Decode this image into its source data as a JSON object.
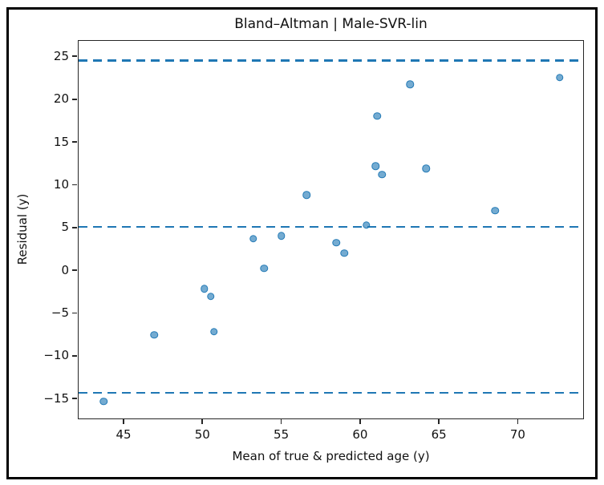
{
  "figure": {
    "background_color": "#ffffff",
    "frame_color": "#000000"
  },
  "chart_data": {
    "type": "scatter",
    "title": "Bland–Altman | Male-SVR-lin",
    "xlabel": "Mean of true & predicted age (y)",
    "ylabel": "Residual (y)",
    "xlim": [
      42.1,
      74.2
    ],
    "ylim": [
      -17.4,
      26.9
    ],
    "x_ticks": [
      45,
      50,
      55,
      60,
      65,
      70
    ],
    "x_tick_labels": [
      "45",
      "50",
      "55",
      "60",
      "65",
      "70"
    ],
    "y_ticks": [
      25,
      20,
      15,
      10,
      5,
      0,
      -5,
      -10,
      -15
    ],
    "y_tick_labels": [
      "25",
      "20",
      "15",
      "10",
      "5",
      "0",
      "−5",
      "−10",
      "−15"
    ],
    "grid": false,
    "legend_position": "none",
    "marker_color": "#1f77b4",
    "marker_fill_opacity": 0.65,
    "series": [
      {
        "name": "residuals-vs-mean",
        "marker": "circle",
        "points": [
          [
            43.7,
            -15.4
          ],
          [
            46.9,
            -7.6
          ],
          [
            50.1,
            -2.2
          ],
          [
            50.5,
            -3.1
          ],
          [
            50.7,
            -7.2
          ],
          [
            53.2,
            3.7
          ],
          [
            53.9,
            0.2
          ],
          [
            55.0,
            4.0
          ],
          [
            56.6,
            8.8
          ],
          [
            58.5,
            3.2
          ],
          [
            59.0,
            2.0
          ],
          [
            60.4,
            5.3
          ],
          [
            61.0,
            12.2
          ],
          [
            61.1,
            18.1
          ],
          [
            61.4,
            11.2
          ],
          [
            63.2,
            21.8
          ],
          [
            64.2,
            11.9
          ],
          [
            68.6,
            7.0
          ],
          [
            72.7,
            22.6
          ]
        ]
      }
    ],
    "reference_lines": [
      {
        "name": "upper-limit-of-agreement",
        "y": 24.6,
        "style": "dashed",
        "color": "#1f77b4"
      },
      {
        "name": "mean-bias",
        "y": 5.1,
        "style": "dashed",
        "color": "#1f77b4"
      },
      {
        "name": "lower-limit-of-agreement",
        "y": -14.4,
        "style": "dashed",
        "color": "#1f77b4"
      }
    ]
  }
}
